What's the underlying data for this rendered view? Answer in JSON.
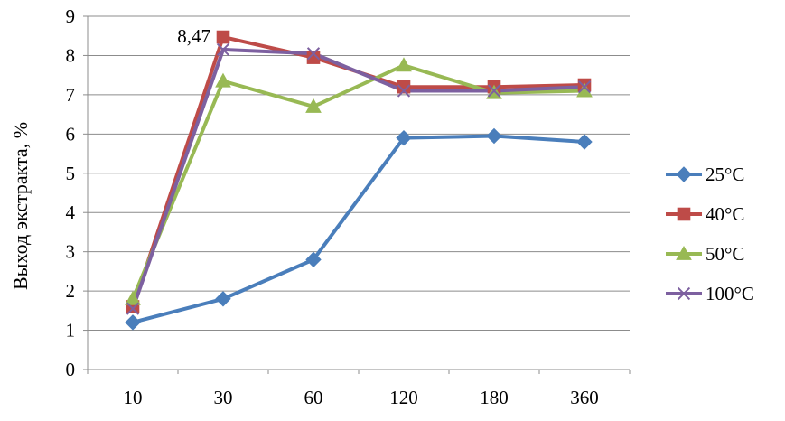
{
  "chart_data": {
    "type": "line",
    "categories": [
      "10",
      "30",
      "60",
      "120",
      "180",
      "360"
    ],
    "ylabel": "Выход экстракта, %",
    "ylim": [
      0,
      9
    ],
    "yticks": [
      "0",
      "1",
      "2",
      "3",
      "4",
      "5",
      "6",
      "7",
      "8",
      "9"
    ],
    "grid": true,
    "legend_position": "right",
    "annotations": [
      {
        "text": "8,47",
        "series": "40°C",
        "category": "30"
      }
    ],
    "series": [
      {
        "name": "25°C",
        "color": "#4a7ebb",
        "marker": "diamond",
        "values": [
          1.2,
          1.8,
          2.8,
          5.9,
          5.95,
          5.8
        ]
      },
      {
        "name": "40°C",
        "color": "#be4b48",
        "marker": "square",
        "values": [
          1.6,
          8.47,
          7.95,
          7.2,
          7.2,
          7.25
        ]
      },
      {
        "name": "50°C",
        "color": "#98b954",
        "marker": "triangle",
        "values": [
          1.8,
          7.35,
          6.7,
          7.75,
          7.05,
          7.1
        ]
      },
      {
        "name": "100°C",
        "color": "#7d60a0",
        "marker": "x",
        "values": [
          1.55,
          8.15,
          8.05,
          7.1,
          7.1,
          7.2
        ]
      }
    ]
  }
}
